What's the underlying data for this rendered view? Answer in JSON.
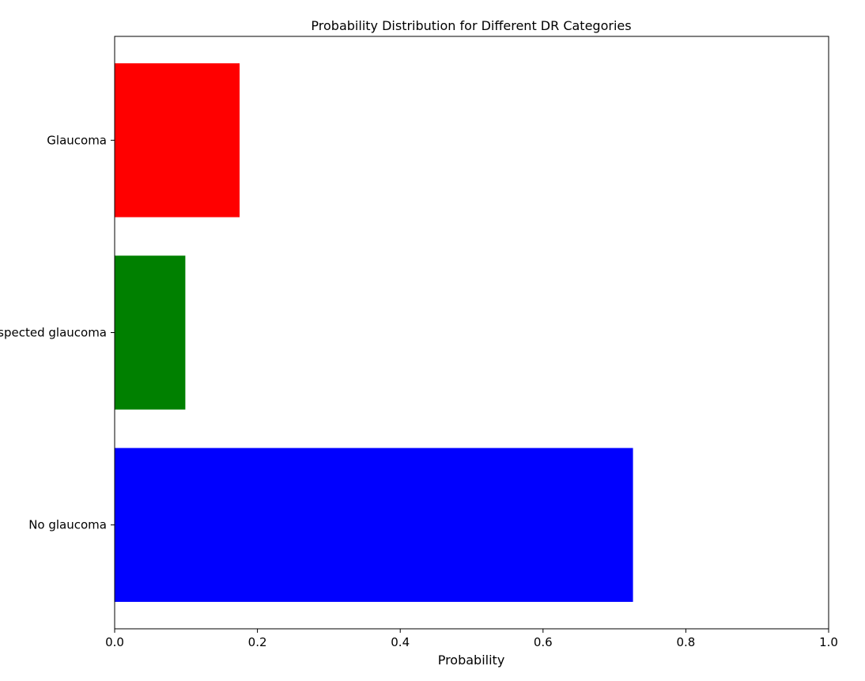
{
  "chart_data": {
    "type": "bar",
    "orientation": "horizontal",
    "title": "Probability Distribution for Different DR Categories",
    "xlabel": "Probability",
    "ylabel": "",
    "xlim": [
      0,
      1
    ],
    "xticks": [
      0.0,
      0.2,
      0.4,
      0.6,
      0.8,
      1.0
    ],
    "xtick_labels": [
      "0.0",
      "0.2",
      "0.4",
      "0.6",
      "0.8",
      "1.0"
    ],
    "categories": [
      "No glaucoma",
      "Suspected glaucoma",
      "Glaucoma"
    ],
    "values": [
      0.726,
      0.099,
      0.175
    ],
    "colors": [
      "#0000ff",
      "#008000",
      "#ff0000"
    ],
    "grid": false,
    "legend": "none"
  }
}
